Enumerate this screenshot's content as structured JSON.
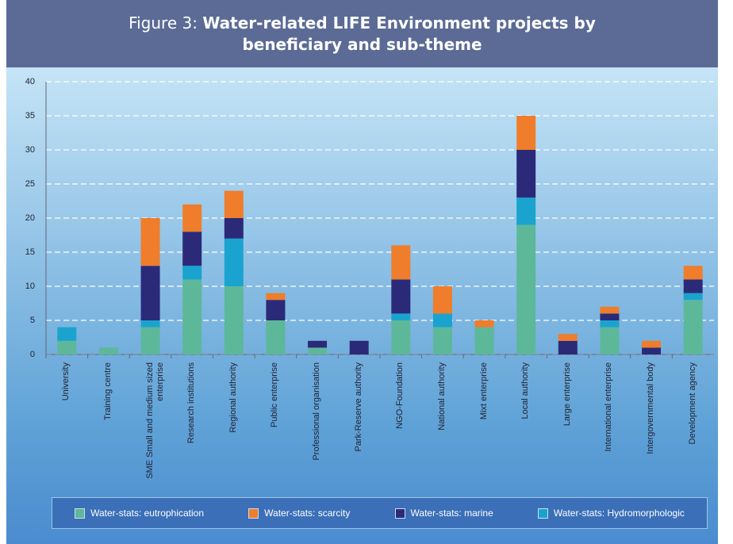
{
  "chart_data": {
    "type": "stacked_bar",
    "title_prefix": "Figure 3:",
    "title": "Water-related LIFE Environment projects by beneficiary and sub-theme",
    "categories": [
      "University",
      "Training centre",
      "SME Small and medium sized enterprise",
      "Research institutions",
      "Regional authority",
      "Public enterprise",
      "Professional organisation",
      "Park-Reserve authority",
      "NGO-Foundation",
      "National authority",
      "Mixt enterprise",
      "Local authority",
      "Large enterprise",
      "International enterprise",
      "Intergovernmental body",
      "Development agency"
    ],
    "series": [
      {
        "name": "Water-stats: eutrophication",
        "color": "#5db89a",
        "values": [
          2,
          1,
          4,
          11,
          10,
          5,
          1,
          0,
          5,
          4,
          4,
          19,
          0,
          4,
          0,
          8
        ]
      },
      {
        "name": "Water-stats: scarcity",
        "color": "#ef7d2b",
        "values": [
          0,
          0,
          7,
          4,
          4,
          1,
          0,
          0,
          5,
          4,
          1,
          5,
          1,
          1,
          1,
          2
        ]
      },
      {
        "name": "Water-stats: marine",
        "color": "#2b2a78",
        "values": [
          0,
          0,
          8,
          5,
          3,
          3,
          1,
          2,
          5,
          0,
          0,
          7,
          2,
          1,
          1,
          2
        ]
      },
      {
        "name": "Water-stats: Hydromorphologic",
        "color": "#1ba3cf",
        "values": [
          2,
          0,
          1,
          2,
          7,
          0,
          0,
          0,
          1,
          2,
          0,
          4,
          0,
          1,
          0,
          1
        ]
      }
    ],
    "stack_order": [
      0,
      3,
      2,
      1
    ],
    "ylim": [
      0,
      40
    ],
    "yticks": [
      0,
      5,
      10,
      15,
      20,
      25,
      30,
      35,
      40
    ],
    "grid": true
  }
}
